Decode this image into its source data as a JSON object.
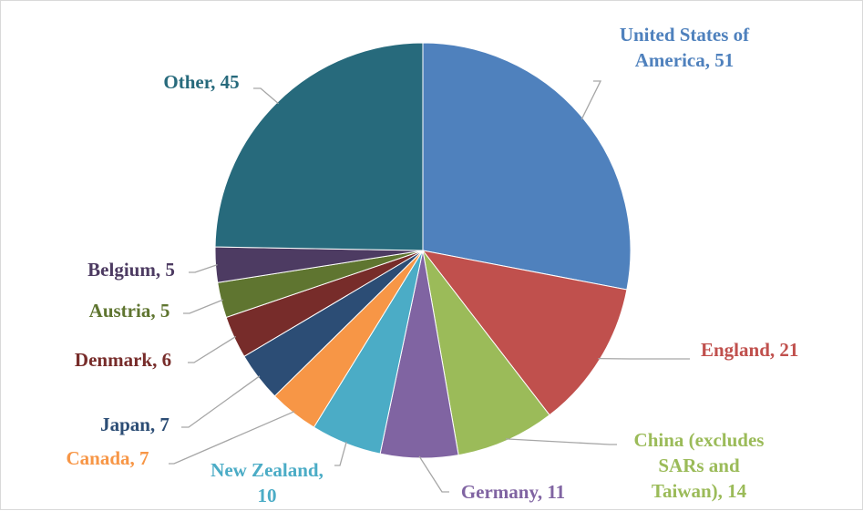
{
  "chart_data": {
    "type": "pie",
    "title": "",
    "start_angle_deg": 0,
    "direction": "clockwise",
    "slices": [
      {
        "label": "United States of America",
        "value": 51,
        "color": "#4F81BD",
        "text_color": "#4F81BD",
        "label_lines": [
          "United States of",
          "America, 51"
        ]
      },
      {
        "label": "England",
        "value": 21,
        "color": "#C0504D",
        "text_color": "#C0504D",
        "label_lines": [
          "England, 21"
        ]
      },
      {
        "label": "China (excludes SARs and Taiwan)",
        "value": 14,
        "color": "#9BBB59",
        "text_color": "#9BBB59",
        "label_lines": [
          "China (excludes",
          "SARs and",
          "Taiwan), 14"
        ]
      },
      {
        "label": "Germany",
        "value": 11,
        "color": "#8064A2",
        "text_color": "#8064A2",
        "label_lines": [
          "Germany, 11"
        ]
      },
      {
        "label": "New Zealand",
        "value": 10,
        "color": "#4BACC6",
        "text_color": "#4BACC6",
        "label_lines": [
          "New Zealand,",
          "10"
        ]
      },
      {
        "label": "Canada",
        "value": 7,
        "color": "#F79646",
        "text_color": "#F79646",
        "label_lines": [
          "Canada,  7"
        ]
      },
      {
        "label": "Japan",
        "value": 7,
        "color": "#2C4D75",
        "text_color": "#2C4D75",
        "label_lines": [
          "Japan, 7"
        ]
      },
      {
        "label": "Denmark",
        "value": 6,
        "color": "#772C2A",
        "text_color": "#772C2A",
        "label_lines": [
          "Denmark, 6"
        ]
      },
      {
        "label": "Austria",
        "value": 5,
        "color": "#5F7530",
        "text_color": "#5F7530",
        "label_lines": [
          "Austria, 5"
        ]
      },
      {
        "label": "Belgium",
        "value": 5,
        "color": "#4D3B62",
        "text_color": "#4D3B62",
        "label_lines": [
          "Belgium, 5"
        ]
      },
      {
        "label": "Other",
        "value": 45,
        "color": "#276A7C",
        "text_color": "#276A7C",
        "label_lines": [
          "Other, 45"
        ]
      }
    ],
    "leader_line_color": "#A6A6A6"
  }
}
